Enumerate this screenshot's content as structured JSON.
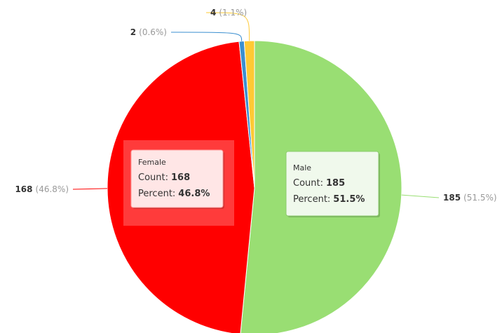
{
  "chart_data": {
    "type": "pie",
    "categories": [
      "Male",
      "Female",
      null,
      null
    ],
    "values": [
      185,
      168,
      2,
      4
    ],
    "percents": [
      51.5,
      46.8,
      0.6,
      1.1
    ],
    "percent_labels": [
      "(51.5%)",
      "(46.8%)",
      "(0.6%)",
      "(1.1%)"
    ],
    "colors": [
      "#99de73",
      "#ff0000",
      "#3b8fd0",
      "#ffc934"
    ],
    "tooltip": {
      "count_label": "Count:",
      "percent_label": "Percent:",
      "percent_values": [
        "51.5%",
        "46.8%"
      ]
    }
  }
}
